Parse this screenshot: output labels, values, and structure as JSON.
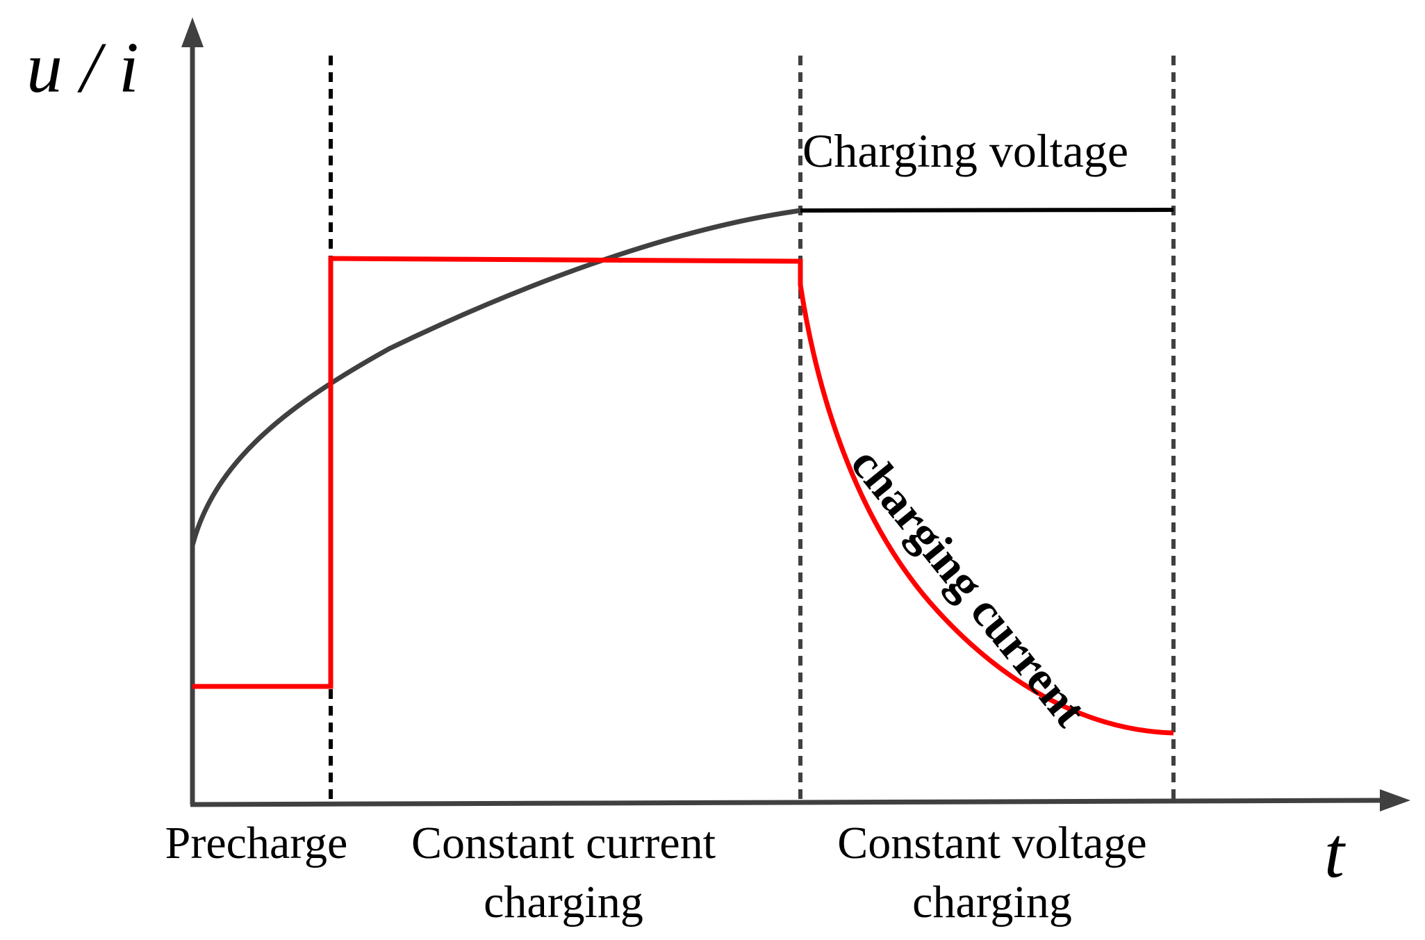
{
  "axes": {
    "y_label": "u / i",
    "x_label": "t"
  },
  "phases": {
    "precharge": "Precharge",
    "constant_current_line1": "Constant current",
    "constant_current_line2": "charging",
    "constant_voltage_line1": "Constant voltage",
    "constant_voltage_line2": "charging"
  },
  "curves": {
    "voltage_label": "Charging voltage",
    "current_label": "charging current"
  },
  "colors": {
    "axis": "#404040",
    "voltage": "#404040",
    "voltage_flat": "#000000",
    "current": "#ff0000",
    "divider": "#404040",
    "text": "#000000"
  }
}
